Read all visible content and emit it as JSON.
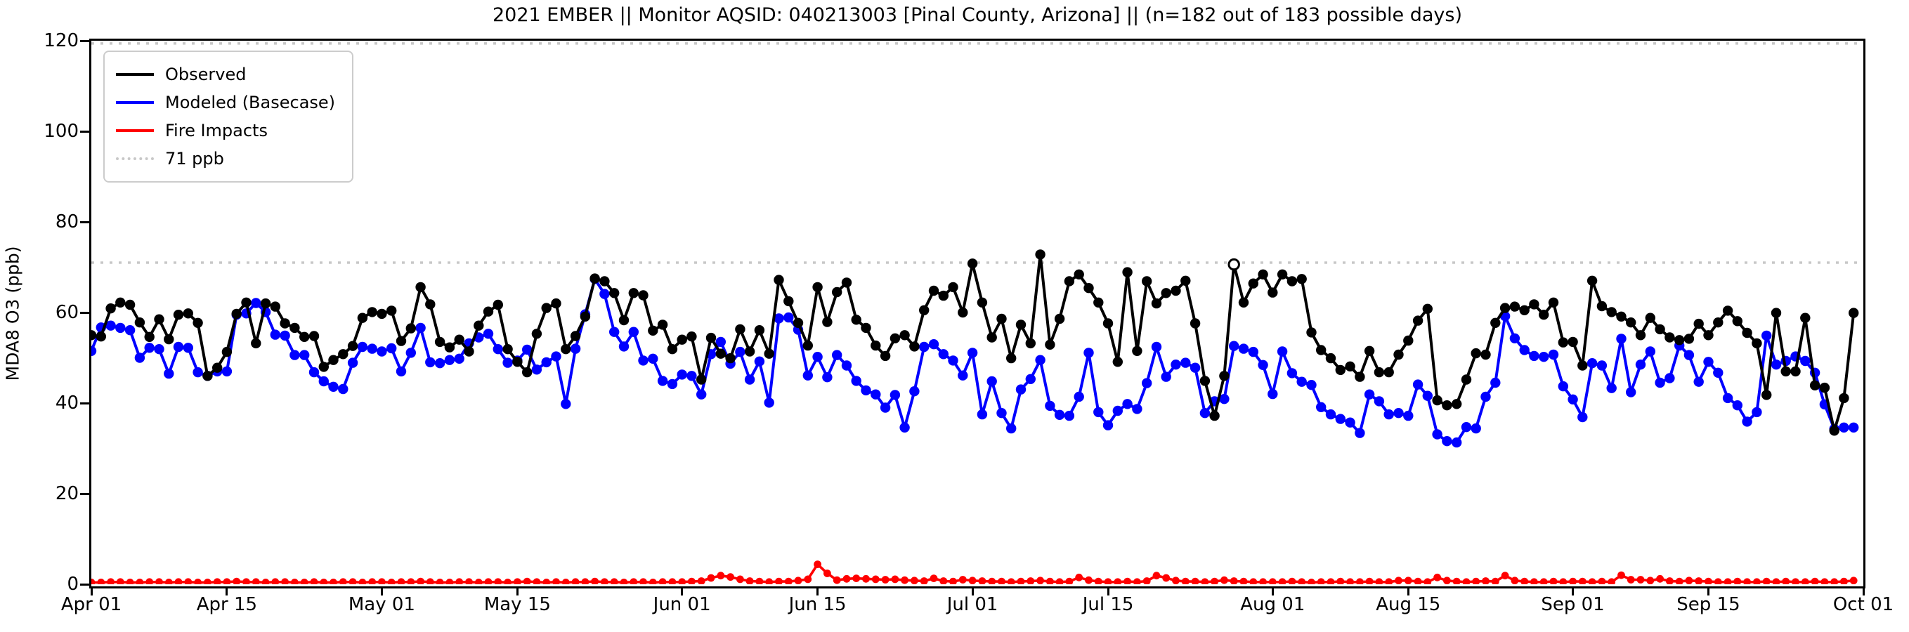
{
  "window": {
    "background": "#ffffff"
  },
  "chart_data": {
    "type": "line",
    "title": "2021 EMBER || Monitor AQSID: 040213003 [Pinal County, Arizona] || (n=182 out of 183 possible days)",
    "xlabel": "",
    "ylabel": "MDA8 O3 (ppb)",
    "ylim": [
      0,
      120
    ],
    "yticks": [
      0,
      20,
      40,
      60,
      80,
      100,
      120
    ],
    "grid": "off",
    "legend_position": "upper left",
    "n_days": 183,
    "x_start_label": "Apr 01",
    "x_end_label": "Oct 01",
    "xticks": [
      {
        "label": "Apr 01",
        "day": 0
      },
      {
        "label": "Apr 15",
        "day": 14
      },
      {
        "label": "May 01",
        "day": 30
      },
      {
        "label": "May 15",
        "day": 44
      },
      {
        "label": "Jun 01",
        "day": 61
      },
      {
        "label": "Jun 15",
        "day": 75
      },
      {
        "label": "Jul 01",
        "day": 91
      },
      {
        "label": "Jul 15",
        "day": 105
      },
      {
        "label": "Aug 01",
        "day": 122
      },
      {
        "label": "Aug 15",
        "day": 136
      },
      {
        "label": "Sep 01",
        "day": 153
      },
      {
        "label": "Sep 15",
        "day": 167
      },
      {
        "label": "Oct 01",
        "day": 183
      }
    ],
    "reference_lines": [
      {
        "label": "71 ppb",
        "value": 71,
        "color": "#c8c8c8",
        "style": "dotted"
      },
      {
        "label": "",
        "value": 119.4,
        "color": "#c8c8c8",
        "style": "dotted"
      }
    ],
    "special_markers": [
      {
        "series": "Observed",
        "day_index": 118,
        "date_label": "Jul 28",
        "style": "open-circle",
        "value": 70.6
      }
    ],
    "series": [
      {
        "name": "Observed",
        "color": "#000000",
        "marker": "circle",
        "values": [
          55.0,
          54.7,
          60.9,
          62.2,
          61.7,
          57.8,
          54.6,
          58.5,
          54.1,
          59.5,
          59.8,
          57.7,
          46.0,
          47.8,
          51.3,
          59.7,
          62.2,
          53.2,
          62.0,
          61.3,
          57.6,
          56.6,
          54.6,
          54.8,
          48.0,
          49.5,
          50.8,
          52.6,
          58.8,
          60.1,
          59.7,
          60.4,
          53.7,
          56.5,
          65.6,
          61.8,
          53.5,
          52.3,
          54.0,
          51.4,
          57.1,
          60.2,
          61.7,
          51.9,
          49.1,
          46.8,
          55.3,
          61.0,
          62.0,
          51.9,
          54.8,
          59.1,
          67.5,
          66.9,
          64.3,
          58.3,
          64.3,
          63.8,
          56.0,
          57.3,
          51.9,
          54.0,
          54.7,
          45.2,
          54.4,
          50.9,
          49.9,
          56.3,
          51.4,
          56.1,
          50.9,
          67.2,
          62.5,
          57.7,
          52.7,
          65.6,
          57.9,
          64.5,
          66.6,
          58.4,
          56.6,
          52.7,
          50.4,
          54.3,
          55.0,
          52.5,
          60.5,
          64.8,
          63.7,
          65.6,
          60.0,
          70.8,
          62.2,
          54.5,
          58.6,
          49.9,
          57.3,
          53.2,
          72.8,
          52.9,
          58.6,
          66.9,
          68.4,
          65.4,
          62.2,
          57.6,
          49.1,
          68.9,
          51.5,
          66.9,
          62.0,
          64.3,
          64.8,
          67.0,
          57.6,
          44.9,
          37.2,
          46.0,
          70.6,
          62.2,
          66.4,
          68.4,
          64.4,
          68.4,
          66.9,
          67.4,
          55.6,
          51.7,
          49.9,
          47.3,
          48.1,
          45.8,
          51.5,
          46.8,
          46.8,
          50.7,
          53.8,
          58.2,
          60.8,
          40.6,
          39.5,
          39.8,
          45.2,
          51.0,
          50.7,
          57.7,
          61.0,
          61.3,
          60.5,
          61.8,
          59.5,
          62.2,
          53.4,
          53.5,
          48.3,
          67.0,
          61.4,
          60.1,
          59.1,
          57.8,
          55.0,
          58.8,
          56.3,
          54.5,
          53.9,
          54.2,
          57.5,
          55.0,
          57.8,
          60.4,
          58.1,
          55.5,
          53.2,
          41.8,
          59.9,
          47.0,
          47.0,
          58.8,
          43.9,
          43.4,
          33.9,
          41.1,
          59.9
        ]
      },
      {
        "name": "Modeled (Basecase)",
        "color": "#0000ff",
        "marker": "circle",
        "values": [
          51.5,
          56.7,
          57.1,
          56.6,
          56.1,
          50.0,
          52.2,
          51.9,
          46.5,
          52.4,
          52.2,
          46.8,
          46.0,
          47.0,
          47.0,
          59.5,
          59.8,
          62.1,
          60.1,
          55.1,
          54.9,
          50.6,
          50.6,
          46.8,
          44.8,
          43.6,
          43.1,
          48.9,
          52.4,
          52.0,
          51.4,
          52.1,
          47.0,
          51.1,
          56.6,
          49.0,
          48.8,
          49.5,
          49.8,
          53.2,
          54.5,
          55.3,
          51.9,
          48.9,
          49.4,
          51.8,
          47.4,
          49.0,
          50.3,
          39.8,
          52.0,
          59.6,
          67.4,
          64.1,
          55.7,
          52.5,
          55.7,
          49.4,
          49.8,
          44.9,
          44.2,
          46.3,
          46.0,
          41.9,
          50.8,
          53.5,
          48.7,
          51.3,
          45.2,
          49.2,
          40.1,
          58.7,
          58.9,
          56.2,
          46.1,
          50.2,
          45.7,
          50.6,
          48.3,
          44.9,
          42.8,
          41.9,
          39.0,
          41.8,
          34.6,
          42.6,
          52.4,
          53.0,
          50.8,
          49.4,
          46.1,
          51.1,
          37.5,
          44.8,
          37.8,
          34.4,
          43.0,
          45.3,
          49.5,
          39.4,
          37.4,
          37.2,
          41.4,
          51.1,
          38.0,
          35.1,
          38.3,
          39.8,
          38.7,
          44.4,
          52.4,
          45.8,
          48.5,
          48.9,
          47.8,
          37.8,
          40.4,
          40.9,
          52.6,
          52.0,
          51.3,
          48.4,
          42.0,
          51.4,
          46.6,
          44.7,
          44.0,
          39.1,
          37.5,
          36.5,
          35.7,
          33.4,
          41.9,
          40.4,
          37.5,
          37.8,
          37.2,
          44.1,
          41.6,
          33.1,
          31.6,
          31.3,
          34.7,
          34.4,
          41.4,
          44.5,
          59.2,
          54.3,
          51.7,
          50.4,
          50.2,
          50.7,
          43.7,
          40.8,
          36.9,
          48.8,
          48.3,
          43.3,
          54.2,
          42.4,
          48.5,
          51.4,
          44.5,
          45.5,
          52.7,
          50.6,
          44.7,
          49.1,
          46.7,
          41.1,
          39.5,
          35.9,
          38.0,
          54.9,
          48.5,
          49.3,
          50.3,
          49.3,
          46.7,
          39.7,
          34.3,
          34.6,
          34.6
        ]
      },
      {
        "name": "Fire Impacts",
        "color": "#ff0000",
        "marker": "circle",
        "values": [
          0.4,
          0.4,
          0.5,
          0.5,
          0.4,
          0.4,
          0.5,
          0.5,
          0.4,
          0.5,
          0.5,
          0.4,
          0.4,
          0.5,
          0.5,
          0.6,
          0.5,
          0.5,
          0.4,
          0.5,
          0.5,
          0.4,
          0.4,
          0.5,
          0.4,
          0.4,
          0.5,
          0.5,
          0.4,
          0.5,
          0.5,
          0.4,
          0.5,
          0.5,
          0.6,
          0.5,
          0.4,
          0.4,
          0.5,
          0.5,
          0.4,
          0.5,
          0.5,
          0.4,
          0.5,
          0.6,
          0.5,
          0.4,
          0.5,
          0.4,
          0.5,
          0.5,
          0.6,
          0.5,
          0.5,
          0.4,
          0.5,
          0.5,
          0.4,
          0.5,
          0.5,
          0.5,
          0.6,
          0.7,
          1.4,
          1.9,
          1.6,
          1.1,
          0.7,
          0.6,
          0.5,
          0.6,
          0.6,
          0.8,
          1.1,
          4.4,
          2.4,
          0.9,
          1.2,
          1.3,
          1.2,
          1.1,
          1.0,
          1.1,
          0.9,
          0.8,
          0.7,
          1.3,
          0.7,
          0.6,
          1.0,
          0.8,
          0.7,
          0.6,
          0.6,
          0.5,
          0.6,
          0.7,
          0.8,
          0.6,
          0.5,
          0.6,
          1.5,
          0.9,
          0.6,
          0.5,
          0.5,
          0.6,
          0.5,
          0.7,
          1.9,
          1.4,
          0.8,
          0.6,
          0.6,
          0.5,
          0.6,
          0.9,
          0.7,
          0.6,
          0.5,
          0.5,
          0.5,
          0.5,
          0.6,
          0.5,
          0.4,
          0.5,
          0.5,
          0.6,
          0.5,
          0.5,
          0.6,
          0.5,
          0.5,
          0.8,
          0.8,
          0.6,
          0.5,
          1.5,
          0.8,
          0.6,
          0.5,
          0.6,
          0.7,
          0.6,
          1.9,
          0.8,
          0.6,
          0.5,
          0.5,
          0.6,
          0.5,
          0.6,
          0.6,
          0.5,
          0.6,
          0.5,
          2.0,
          1.0,
          1.0,
          0.8,
          1.2,
          0.7,
          0.6,
          0.8,
          0.7,
          0.6,
          0.5,
          0.5,
          0.6,
          0.5,
          0.5,
          0.6,
          0.5,
          0.6,
          0.5,
          0.5,
          0.6,
          0.5,
          0.5,
          0.6,
          0.8
        ]
      }
    ],
    "legend": {
      "entries": [
        "Observed",
        "Modeled (Basecase)",
        "Fire Impacts",
        "71 ppb"
      ]
    }
  }
}
